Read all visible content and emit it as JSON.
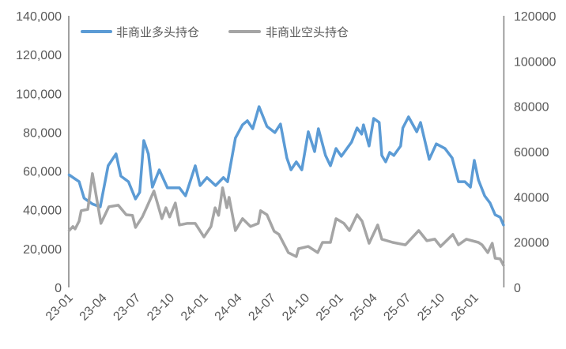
{
  "chart_data": {
    "type": "line",
    "title": "",
    "xlabel": "",
    "ylabel": "",
    "x_tick_labels": [
      "23-01",
      "23-04",
      "23-07",
      "23-10",
      "24-01",
      "24-04",
      "24-07",
      "24-10",
      "25-01",
      "25-04",
      "25-07",
      "25-10",
      "26-01"
    ],
    "x_range": [
      "2023-01-01",
      "2026-03-20"
    ],
    "y_left": {
      "range": [
        0,
        140000
      ],
      "tick_labels": [
        "0",
        "20,000",
        "40,000",
        "60,000",
        "80,000",
        "100,000",
        "120,000",
        "140,000"
      ]
    },
    "y_right": {
      "range": [
        0,
        120000
      ],
      "tick_labels": [
        "0",
        "20000",
        "40000",
        "60000",
        "80000",
        "100000",
        "120000"
      ]
    },
    "grid": false,
    "legend_placement": "top-left",
    "series": [
      {
        "name": "非商业多头持仓",
        "axis": "left",
        "color": "#5B9BD5",
        "points": [
          [
            "2023-01-02",
            58000
          ],
          [
            "2023-01-29",
            54500
          ],
          [
            "2023-02-12",
            46000
          ],
          [
            "2023-03-04",
            43000
          ],
          [
            "2023-03-25",
            41500
          ],
          [
            "2023-04-16",
            62700
          ],
          [
            "2023-05-07",
            68800
          ],
          [
            "2023-05-20",
            57400
          ],
          [
            "2023-06-10",
            54500
          ],
          [
            "2023-06-29",
            45600
          ],
          [
            "2023-07-10",
            49000
          ],
          [
            "2023-07-21",
            75700
          ],
          [
            "2023-08-03",
            68800
          ],
          [
            "2023-08-14",
            51700
          ],
          [
            "2023-09-02",
            60600
          ],
          [
            "2023-09-24",
            51300
          ],
          [
            "2023-10-26",
            51300
          ],
          [
            "2023-11-12",
            47200
          ],
          [
            "2023-12-08",
            62700
          ],
          [
            "2023-12-21",
            52500
          ],
          [
            "2024-01-09",
            56600
          ],
          [
            "2024-02-02",
            52500
          ],
          [
            "2024-02-23",
            56600
          ],
          [
            "2024-03-04",
            54500
          ],
          [
            "2024-03-25",
            77000
          ],
          [
            "2024-04-14",
            83800
          ],
          [
            "2024-04-27",
            85900
          ],
          [
            "2024-05-11",
            81800
          ],
          [
            "2024-05-28",
            93200
          ],
          [
            "2024-06-19",
            83000
          ],
          [
            "2024-07-10",
            79800
          ],
          [
            "2024-07-25",
            84200
          ],
          [
            "2024-08-12",
            66700
          ],
          [
            "2024-08-23",
            60600
          ],
          [
            "2024-09-07",
            64700
          ],
          [
            "2024-09-22",
            60600
          ],
          [
            "2024-10-09",
            80200
          ],
          [
            "2024-10-26",
            70000
          ],
          [
            "2024-11-06",
            81800
          ],
          [
            "2024-11-25",
            68000
          ],
          [
            "2024-12-08",
            62700
          ],
          [
            "2024-12-23",
            71600
          ],
          [
            "2025-01-07",
            67600
          ],
          [
            "2025-02-04",
            74900
          ],
          [
            "2025-02-19",
            82200
          ],
          [
            "2025-03-01",
            79000
          ],
          [
            "2025-03-06",
            83800
          ],
          [
            "2025-03-21",
            72900
          ],
          [
            "2025-04-03",
            87100
          ],
          [
            "2025-04-18",
            85000
          ],
          [
            "2025-04-25",
            68000
          ],
          [
            "2025-05-05",
            64700
          ],
          [
            "2025-05-16",
            69600
          ],
          [
            "2025-05-27",
            68000
          ],
          [
            "2025-06-15",
            72900
          ],
          [
            "2025-06-21",
            82200
          ],
          [
            "2025-07-06",
            87900
          ],
          [
            "2025-07-28",
            80200
          ],
          [
            "2025-08-08",
            85000
          ],
          [
            "2025-09-01",
            66000
          ],
          [
            "2025-09-20",
            74000
          ],
          [
            "2025-10-13",
            71600
          ],
          [
            "2025-11-02",
            66700
          ],
          [
            "2025-11-19",
            54500
          ],
          [
            "2025-12-06",
            54500
          ],
          [
            "2025-12-21",
            51700
          ],
          [
            "2026-01-01",
            65500
          ],
          [
            "2026-01-12",
            55400
          ],
          [
            "2026-01-29",
            47200
          ],
          [
            "2026-02-13",
            43500
          ],
          [
            "2026-02-27",
            37400
          ],
          [
            "2026-03-10",
            36200
          ],
          [
            "2026-03-19",
            32200
          ]
        ]
      },
      {
        "name": "非商业空头持仓",
        "axis": "right",
        "color": "#A5A5A5",
        "points": [
          [
            "2023-01-02",
            25100
          ],
          [
            "2023-01-12",
            26900
          ],
          [
            "2023-01-18",
            25800
          ],
          [
            "2023-01-29",
            29300
          ],
          [
            "2023-02-04",
            33900
          ],
          [
            "2023-02-22",
            34500
          ],
          [
            "2023-03-04",
            50300
          ],
          [
            "2023-03-27",
            28300
          ],
          [
            "2023-04-18",
            35600
          ],
          [
            "2023-05-13",
            36300
          ],
          [
            "2023-06-04",
            32100
          ],
          [
            "2023-06-21",
            31800
          ],
          [
            "2023-06-29",
            26500
          ],
          [
            "2023-07-17",
            31100
          ],
          [
            "2023-08-01",
            36300
          ],
          [
            "2023-08-18",
            42600
          ],
          [
            "2023-09-09",
            30400
          ],
          [
            "2023-09-20",
            35200
          ],
          [
            "2023-09-30",
            31100
          ],
          [
            "2023-10-15",
            37300
          ],
          [
            "2023-10-26",
            27600
          ],
          [
            "2023-11-16",
            28300
          ],
          [
            "2023-12-08",
            28300
          ],
          [
            "2024-01-01",
            22300
          ],
          [
            "2024-01-20",
            26900
          ],
          [
            "2024-01-31",
            35200
          ],
          [
            "2024-02-10",
            31800
          ],
          [
            "2024-02-21",
            44000
          ],
          [
            "2024-03-02",
            35200
          ],
          [
            "2024-03-08",
            39800
          ],
          [
            "2024-03-25",
            25100
          ],
          [
            "2024-04-14",
            30400
          ],
          [
            "2024-05-05",
            26900
          ],
          [
            "2024-05-26",
            28300
          ],
          [
            "2024-06-02",
            33900
          ],
          [
            "2024-06-19",
            32100
          ],
          [
            "2024-07-08",
            24800
          ],
          [
            "2024-07-21",
            23400
          ],
          [
            "2024-08-16",
            15400
          ],
          [
            "2024-09-07",
            13600
          ],
          [
            "2024-09-13",
            17100
          ],
          [
            "2024-10-09",
            18100
          ],
          [
            "2024-11-04",
            15400
          ],
          [
            "2024-11-17",
            19900
          ],
          [
            "2024-12-08",
            19900
          ],
          [
            "2024-12-23",
            30400
          ],
          [
            "2025-01-14",
            28300
          ],
          [
            "2025-01-29",
            25100
          ],
          [
            "2025-02-19",
            32100
          ],
          [
            "2025-03-02",
            29300
          ],
          [
            "2025-03-21",
            19500
          ],
          [
            "2025-04-14",
            27600
          ],
          [
            "2025-04-25",
            21300
          ],
          [
            "2025-05-24",
            19900
          ],
          [
            "2025-06-28",
            18800
          ],
          [
            "2025-08-03",
            25100
          ],
          [
            "2025-08-25",
            20600
          ],
          [
            "2025-09-16",
            21300
          ],
          [
            "2025-10-01",
            18100
          ],
          [
            "2025-11-04",
            23400
          ],
          [
            "2025-11-19",
            18800
          ],
          [
            "2025-12-10",
            21300
          ],
          [
            "2026-01-12",
            19900
          ],
          [
            "2026-01-22",
            18800
          ],
          [
            "2026-02-07",
            15400
          ],
          [
            "2026-02-19",
            19500
          ],
          [
            "2026-02-27",
            12900
          ],
          [
            "2026-03-10",
            12600
          ],
          [
            "2026-03-19",
            9800
          ]
        ]
      }
    ]
  }
}
